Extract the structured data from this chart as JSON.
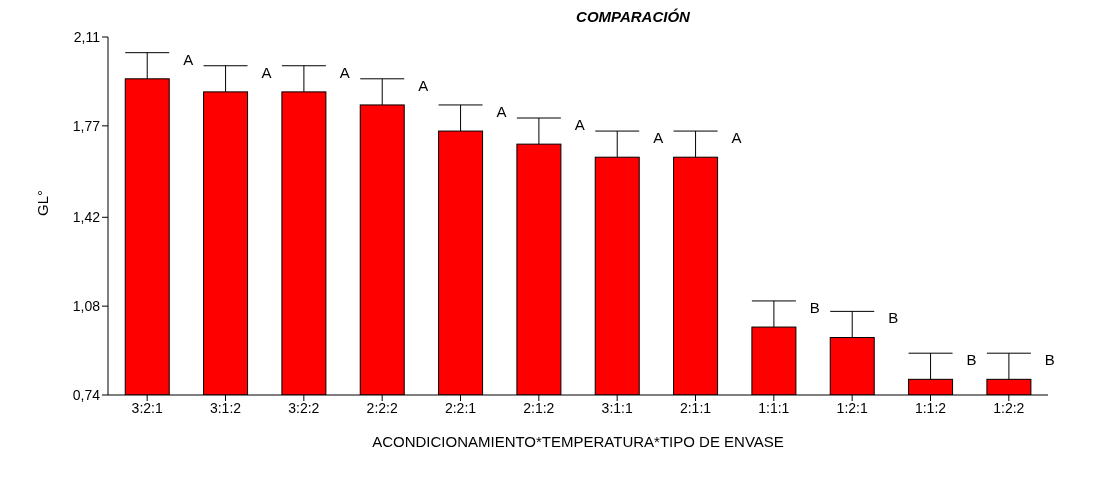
{
  "chart_data": {
    "type": "bar",
    "title": "COMPARACIÓN",
    "xlabel": "ACONDICIONAMIENTO*TEMPERATURA*TIPO DE ENVASE",
    "ylabel": "GL°",
    "categories": [
      "3:2:1",
      "3:1:2",
      "3:2:2",
      "2:2:2",
      "2:2:1",
      "2:1:2",
      "3:1:1",
      "2:1:1",
      "1:1:1",
      "1:2:1",
      "1:1:2",
      "1:2:2"
    ],
    "values": [
      1.95,
      1.9,
      1.9,
      1.85,
      1.75,
      1.7,
      1.65,
      1.65,
      1.0,
      0.96,
      0.8,
      0.8
    ],
    "errors": [
      [
        1.95,
        2.05
      ],
      [
        1.9,
        2.0
      ],
      [
        1.9,
        2.0
      ],
      [
        1.85,
        1.95
      ],
      [
        1.75,
        1.85
      ],
      [
        1.7,
        1.8
      ],
      [
        1.65,
        1.75
      ],
      [
        1.65,
        1.75
      ],
      [
        1.0,
        1.1
      ],
      [
        0.96,
        1.06
      ],
      [
        0.8,
        0.9
      ],
      [
        0.8,
        0.9
      ]
    ],
    "color": "#ff0000",
    "ylim": [
      0.74,
      2.11
    ],
    "yticks": [
      {
        "value": 0.74,
        "label": "0,74"
      },
      {
        "value": 1.08,
        "label": "1,08"
      },
      {
        "value": 1.42,
        "label": "1,42"
      },
      {
        "value": 1.77,
        "label": "1,77"
      },
      {
        "value": 2.11,
        "label": "2,11"
      }
    ],
    "grid": false,
    "legend": false,
    "annotations": [
      {
        "text": "A",
        "x": "3:2:1",
        "y": 2.05
      },
      {
        "text": "A",
        "x": "3:1:2",
        "y": 2.0
      },
      {
        "text": "A",
        "x": "3:2:2",
        "y": 2.0
      },
      {
        "text": "A",
        "x": "2:2:2",
        "y": 1.95
      },
      {
        "text": "A",
        "x": "2:2:1",
        "y": 1.85
      },
      {
        "text": "A",
        "x": "2:1:2",
        "y": 1.8
      },
      {
        "text": "A",
        "x": "3:1:1",
        "y": 1.75
      },
      {
        "text": "A",
        "x": "2:1:1",
        "y": 1.75
      },
      {
        "text": "B",
        "x": "1:1:1",
        "y": 1.1
      },
      {
        "text": "B",
        "x": "1:2:1",
        "y": 1.06
      },
      {
        "text": "B",
        "x": "1:1:2",
        "y": 0.9
      },
      {
        "text": "B",
        "x": "1:2:2",
        "y": 0.9
      }
    ]
  }
}
